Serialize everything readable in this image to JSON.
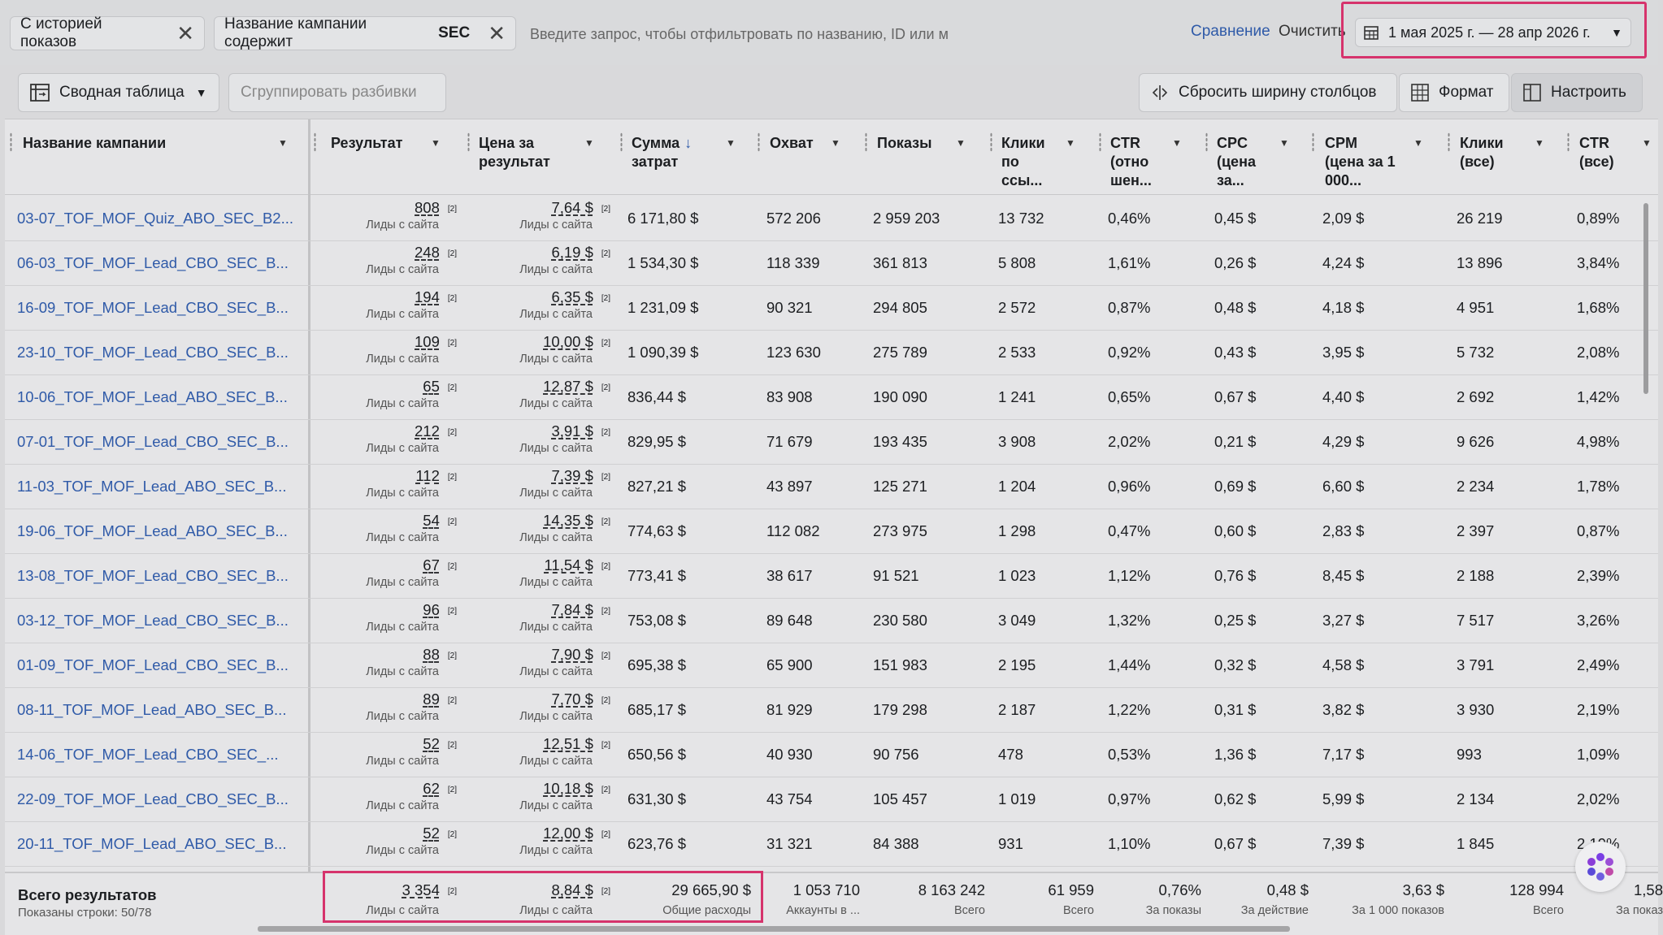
{
  "filters": {
    "chips": [
      {
        "label": "С историей показов"
      },
      {
        "label": "Название кампании содержит SEC",
        "bold_value": "SEC",
        "prefix": "Название кампании содержит"
      }
    ],
    "search_placeholder": "Введите запрос, чтобы отфильтровать по названию, ID или м",
    "compare_label": "Сравнение",
    "clear_label": "Очистить",
    "date_range": "1 мая 2025 г. — 28 апр 2026 г."
  },
  "toolbar": {
    "pivot_label": "Сводная таблица",
    "group_label": "Сгруппировать разбивки",
    "reset_width_label": "Сбросить ширину столбцов",
    "format_label": "Формат",
    "customize_label": "Настроить"
  },
  "columns": {
    "name": "Название кампании",
    "result": "Результат",
    "cost_per_result": [
      "Цена за",
      "результат"
    ],
    "spend": [
      "Сумма",
      "затрат"
    ],
    "reach": "Охват",
    "impressions": "Показы",
    "link_clicks": [
      "Клики",
      "по",
      "ссы..."
    ],
    "ctr": [
      "CTR",
      "(отно",
      "шен..."
    ],
    "cpc": [
      "CPC",
      "(цена",
      "за..."
    ],
    "cpm": [
      "CPM",
      "(цена за 1",
      "000..."
    ],
    "clicks_all": [
      "Клики",
      "(все)"
    ],
    "ctr_all": [
      "CTR",
      "(все)"
    ]
  },
  "result_sup": "[2]",
  "result_sublabel": "Лиды с сайта",
  "rows": [
    {
      "name": "03-07_TOF_MOF_Quiz_ABO_SEC_B2...",
      "result": "808",
      "cpr": "7,64 $",
      "spend": "6 171,80 $",
      "reach": "572 206",
      "impressions": "2 959 203",
      "link_clicks": "13 732",
      "ctr": "0,46%",
      "cpc": "0,45 $",
      "cpm": "2,09 $",
      "clicks_all": "26 219",
      "ctr_all": "0,89%"
    },
    {
      "name": "06-03_TOF_MOF_Lead_CBO_SEC_B...",
      "result": "248",
      "cpr": "6,19 $",
      "spend": "1 534,30 $",
      "reach": "118 339",
      "impressions": "361 813",
      "link_clicks": "5 808",
      "ctr": "1,61%",
      "cpc": "0,26 $",
      "cpm": "4,24 $",
      "clicks_all": "13 896",
      "ctr_all": "3,84%"
    },
    {
      "name": "16-09_TOF_MOF_Lead_CBO_SEC_B...",
      "result": "194",
      "cpr": "6,35 $",
      "spend": "1 231,09 $",
      "reach": "90 321",
      "impressions": "294 805",
      "link_clicks": "2 572",
      "ctr": "0,87%",
      "cpc": "0,48 $",
      "cpm": "4,18 $",
      "clicks_all": "4 951",
      "ctr_all": "1,68%"
    },
    {
      "name": "23-10_TOF_MOF_Lead_CBO_SEC_B...",
      "result": "109",
      "cpr": "10,00 $",
      "spend": "1 090,39 $",
      "reach": "123 630",
      "impressions": "275 789",
      "link_clicks": "2 533",
      "ctr": "0,92%",
      "cpc": "0,43 $",
      "cpm": "3,95 $",
      "clicks_all": "5 732",
      "ctr_all": "2,08%"
    },
    {
      "name": "10-06_TOF_MOF_Lead_ABO_SEC_B...",
      "result": "65",
      "cpr": "12,87 $",
      "spend": "836,44 $",
      "reach": "83 908",
      "impressions": "190 090",
      "link_clicks": "1 241",
      "ctr": "0,65%",
      "cpc": "0,67 $",
      "cpm": "4,40 $",
      "clicks_all": "2 692",
      "ctr_all": "1,42%"
    },
    {
      "name": "07-01_TOF_MOF_Lead_CBO_SEC_B...",
      "result": "212",
      "cpr": "3,91 $",
      "spend": "829,95 $",
      "reach": "71 679",
      "impressions": "193 435",
      "link_clicks": "3 908",
      "ctr": "2,02%",
      "cpc": "0,21 $",
      "cpm": "4,29 $",
      "clicks_all": "9 626",
      "ctr_all": "4,98%"
    },
    {
      "name": "11-03_TOF_MOF_Lead_ABO_SEC_B...",
      "result": "112",
      "cpr": "7,39 $",
      "spend": "827,21 $",
      "reach": "43 897",
      "impressions": "125 271",
      "link_clicks": "1 204",
      "ctr": "0,96%",
      "cpc": "0,69 $",
      "cpm": "6,60 $",
      "clicks_all": "2 234",
      "ctr_all": "1,78%"
    },
    {
      "name": "19-06_TOF_MOF_Lead_ABO_SEC_B...",
      "result": "54",
      "cpr": "14,35 $",
      "spend": "774,63 $",
      "reach": "112 082",
      "impressions": "273 975",
      "link_clicks": "1 298",
      "ctr": "0,47%",
      "cpc": "0,60 $",
      "cpm": "2,83 $",
      "clicks_all": "2 397",
      "ctr_all": "0,87%"
    },
    {
      "name": "13-08_TOF_MOF_Lead_CBO_SEC_B...",
      "result": "67",
      "cpr": "11,54 $",
      "spend": "773,41 $",
      "reach": "38 617",
      "impressions": "91 521",
      "link_clicks": "1 023",
      "ctr": "1,12%",
      "cpc": "0,76 $",
      "cpm": "8,45 $",
      "clicks_all": "2 188",
      "ctr_all": "2,39%"
    },
    {
      "name": "03-12_TOF_MOF_Lead_CBO_SEC_B...",
      "result": "96",
      "cpr": "7,84 $",
      "spend": "753,08 $",
      "reach": "89 648",
      "impressions": "230 580",
      "link_clicks": "3 049",
      "ctr": "1,32%",
      "cpc": "0,25 $",
      "cpm": "3,27 $",
      "clicks_all": "7 517",
      "ctr_all": "3,26%"
    },
    {
      "name": "01-09_TOF_MOF_Lead_CBO_SEC_B...",
      "result": "88",
      "cpr": "7,90 $",
      "spend": "695,38 $",
      "reach": "65 900",
      "impressions": "151 983",
      "link_clicks": "2 195",
      "ctr": "1,44%",
      "cpc": "0,32 $",
      "cpm": "4,58 $",
      "clicks_all": "3 791",
      "ctr_all": "2,49%"
    },
    {
      "name": "08-11_TOF_MOF_Lead_ABO_SEC_B...",
      "result": "89",
      "cpr": "7,70 $",
      "spend": "685,17 $",
      "reach": "81 929",
      "impressions": "179 298",
      "link_clicks": "2 187",
      "ctr": "1,22%",
      "cpc": "0,31 $",
      "cpm": "3,82 $",
      "clicks_all": "3 930",
      "ctr_all": "2,19%"
    },
    {
      "name": "14-06_TOF_MOF_Lead_CBO_SEC_...",
      "result": "52",
      "cpr": "12,51 $",
      "spend": "650,56 $",
      "reach": "40 930",
      "impressions": "90 756",
      "link_clicks": "478",
      "ctr": "0,53%",
      "cpc": "1,36 $",
      "cpm": "7,17 $",
      "clicks_all": "993",
      "ctr_all": "1,09%"
    },
    {
      "name": "22-09_TOF_MOF_Lead_CBO_SEC_B...",
      "result": "62",
      "cpr": "10,18 $",
      "spend": "631,30 $",
      "reach": "43 754",
      "impressions": "105 457",
      "link_clicks": "1 019",
      "ctr": "0,97%",
      "cpc": "0,62 $",
      "cpm": "5,99 $",
      "clicks_all": "2 134",
      "ctr_all": "2,02%"
    },
    {
      "name": "20-11_TOF_MOF_Lead_ABO_SEC_B...",
      "result": "52",
      "cpr": "12,00 $",
      "spend": "623,76 $",
      "reach": "31 321",
      "impressions": "84 388",
      "link_clicks": "931",
      "ctr": "1,10%",
      "cpc": "0,67 $",
      "cpm": "7,39 $",
      "clicks_all": "1 845",
      "ctr_all": "2,19%"
    }
  ],
  "totals": {
    "title": "Всего результатов",
    "subtitle": "Показаны строки: 50/78",
    "result": "3 354",
    "result_label": "Лиды с сайта",
    "cpr": "8,84 $",
    "cpr_label": "Лиды с сайта",
    "spend": "29 665,90 $",
    "spend_label": "Общие расходы",
    "reach": "1 053 710",
    "reach_label": "Аккаунты в ...",
    "impressions": "8 163 242",
    "impressions_label": "Всего",
    "link_clicks": "61 959",
    "link_clicks_label": "Всего",
    "ctr": "0,76%",
    "ctr_label": "За показы",
    "cpc": "0,48 $",
    "cpc_label": "За действие",
    "cpm": "3,63 $",
    "cpm_label": "За 1 000 показов",
    "clicks_all": "128 994",
    "clicks_all_label": "Всего",
    "ctr_all": "1,58",
    "ctr_all_label": "За показ"
  },
  "colors": {
    "link": "#2f5aa8",
    "highlight": "#d6336c",
    "background": "#e5e5e7"
  }
}
